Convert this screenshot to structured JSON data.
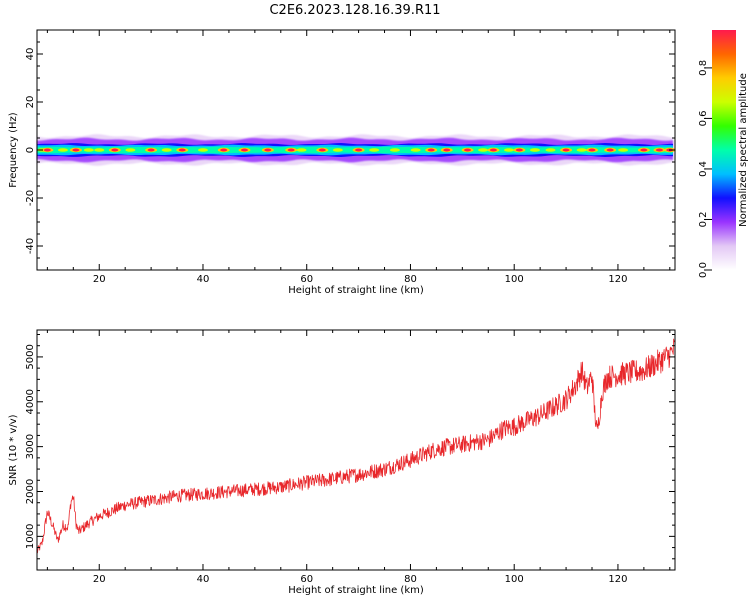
{
  "title": "C2E6.2023.128.16.39.R11",
  "colors": {
    "snr_line": "#e8272b",
    "axis": "#000000",
    "spectrum_scale": [
      "#ffffff",
      "#e3c8f5",
      "#9933ff",
      "#1010ff",
      "#00bfff",
      "#00ffaa",
      "#33ff00",
      "#ccff00",
      "#ffcc00",
      "#ff6600",
      "#ff1a4d"
    ]
  },
  "chart_data": [
    {
      "type": "heatmap",
      "title": "C2E6.2023.128.16.39.R11",
      "xlabel": "Height of straight line (km)",
      "ylabel": "Frequency (Hz)",
      "xlim": [
        8,
        131
      ],
      "ylim": [
        -50,
        50
      ],
      "x_ticks": [
        20,
        40,
        60,
        80,
        100,
        120
      ],
      "x_tick_labels": [
        "20",
        "40",
        "60",
        "80",
        "100",
        "120"
      ],
      "y_ticks": [
        -40,
        -20,
        0,
        20,
        40
      ],
      "y_tick_labels": [
        "-40",
        "-20",
        "0",
        "20",
        "40"
      ],
      "band": {
        "center_frequency_hz": 0,
        "outer_halfwidth_hz": 5,
        "blue_halfwidth_hz": 2.5,
        "core_halfwidth_hz": 1.2,
        "peak_heights_km": [
          10,
          15.5,
          23,
          30,
          36,
          44,
          48,
          52.5,
          57,
          63,
          70,
          84,
          87,
          91,
          96,
          101,
          110,
          115,
          118.5,
          125,
          128,
          130
        ],
        "mid_heights_km": [
          9,
          13,
          18,
          20,
          26,
          33,
          40,
          59,
          66,
          73,
          77,
          81,
          94,
          99,
          104,
          107,
          113,
          121
        ]
      },
      "colorbar": {
        "label": "Normalized spectral amplitude",
        "range": [
          0,
          0.95
        ],
        "ticks": [
          0.0,
          0.2,
          0.4,
          0.6,
          0.8
        ],
        "tick_labels": [
          "0.0",
          "0.2",
          "0.4",
          "0.6",
          "0.8"
        ]
      }
    },
    {
      "type": "line",
      "xlabel": "Height of straight line (km)",
      "ylabel": "SNR (10 * v/v)",
      "xlim": [
        8,
        131
      ],
      "ylim": [
        250,
        5600
      ],
      "x_ticks": [
        20,
        40,
        60,
        80,
        100,
        120
      ],
      "x_tick_labels": [
        "20",
        "40",
        "60",
        "80",
        "100",
        "120"
      ],
      "y_ticks": [
        1000,
        2000,
        3000,
        4000,
        5000
      ],
      "y_tick_labels": [
        "1000",
        "2000",
        "3000",
        "4000",
        "5000"
      ],
      "series": [
        {
          "name": "SNR",
          "x": [
            8,
            9,
            10,
            11,
            12,
            13,
            14,
            14.5,
            15,
            15.5,
            16,
            18,
            20,
            22,
            25,
            30,
            35,
            40,
            45,
            50,
            55,
            60,
            65,
            70,
            75,
            80,
            85,
            90,
            95,
            98,
            100,
            105,
            110,
            112,
            113,
            114,
            115,
            115.5,
            116,
            117,
            118,
            120,
            125,
            128,
            130,
            131
          ],
          "values": [
            650,
            850,
            1550,
            1250,
            900,
            1250,
            1200,
            1750,
            1900,
            1300,
            1100,
            1300,
            1450,
            1550,
            1700,
            1800,
            1900,
            1950,
            2000,
            2050,
            2100,
            2200,
            2280,
            2380,
            2500,
            2700,
            2950,
            3050,
            3150,
            3400,
            3450,
            3700,
            4050,
            4400,
            4700,
            4300,
            4600,
            3800,
            3300,
            4250,
            4550,
            4600,
            4700,
            4900,
            5050,
            5200
          ]
        }
      ]
    }
  ]
}
